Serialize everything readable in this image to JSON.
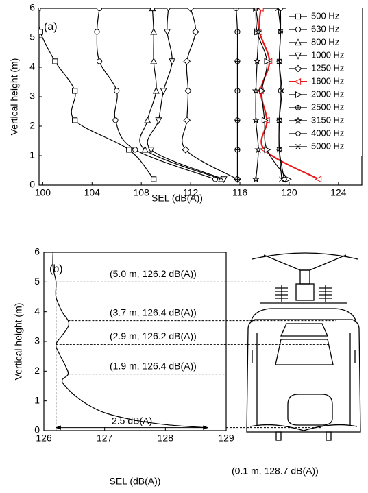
{
  "chart_data": [
    {
      "type": "line",
      "label": "(a)",
      "x_label": "SEL (dB(A))",
      "y_label": "Vertical height (m)",
      "xlim": [
        99.7,
        125.9
      ],
      "xticks": [
        100,
        104,
        108,
        112,
        116,
        120,
        124
      ],
      "ylim": [
        0,
        6
      ],
      "yticks": [
        0,
        1,
        2,
        3,
        4,
        5,
        6
      ],
      "legend": "upper right",
      "y": [
        0.2,
        1.2,
        2.2,
        3.2,
        4.2,
        5.2,
        6
      ],
      "series": [
        {
          "name": "500 Hz",
          "color": "#000000",
          "marker": "square",
          "values": [
            109.0,
            107.0,
            102.6,
            102.6,
            101.0,
            99.8,
            99.6
          ]
        },
        {
          "name": "630 Hz",
          "color": "#000000",
          "marker": "circle",
          "values": [
            114.0,
            107.5,
            105.9,
            106.0,
            104.6,
            104.4,
            104.6
          ]
        },
        {
          "name": "800 Hz",
          "color": "#000000",
          "marker": "triangle-up",
          "values": [
            114.5,
            108.3,
            108.5,
            109.2,
            109.0,
            109.0,
            108.9
          ]
        },
        {
          "name": "1000 Hz",
          "color": "#000000",
          "marker": "triangle-down",
          "values": [
            114.7,
            108.8,
            109.4,
            109.8,
            110.5,
            110.1,
            110.2
          ]
        },
        {
          "name": "1250 Hz",
          "color": "#000000",
          "marker": "diamond",
          "values": [
            115.8,
            111.6,
            111.7,
            111.8,
            111.7,
            112.4,
            112.0
          ]
        },
        {
          "name": "1600 Hz",
          "color": "#e8191b",
          "marker": "triangle-left",
          "values": [
            122.4,
            118.0,
            118.2,
            117.7,
            118.4,
            117.6,
            117.7
          ]
        },
        {
          "name": "2000 Hz",
          "color": "#000000",
          "marker": "triangle-right",
          "values": [
            119.9,
            118.2,
            118.0,
            117.8,
            118.2,
            117.4,
            117.3
          ]
        },
        {
          "name": "2500 Hz",
          "color": "#000000",
          "marker": "circle-plus",
          "values": [
            115.8,
            115.8,
            115.8,
            115.8,
            115.8,
            115.8,
            115.7
          ]
        },
        {
          "name": "3150 Hz",
          "color": "#000000",
          "marker": "star",
          "values": [
            117.3,
            117.5,
            117.3,
            117.3,
            117.4,
            117.5,
            117.3
          ]
        },
        {
          "name": "4000 Hz",
          "color": "#000000",
          "marker": "hexagon",
          "values": [
            119.6,
            119.2,
            119.2,
            119.3,
            119.2,
            119.3,
            119.3
          ]
        },
        {
          "name": "5000 Hz",
          "color": "#000000",
          "marker": "x",
          "values": [
            119.4,
            119.2,
            119.2,
            119.4,
            119.2,
            119.3,
            119.1
          ]
        }
      ]
    },
    {
      "type": "line",
      "label": "(b)",
      "x_label": "SEL (dB(A))",
      "y_label": "Vertical height (m)",
      "xlim": [
        126,
        129
      ],
      "xticks": [
        126,
        127,
        128,
        129
      ],
      "ylim": [
        0,
        6
      ],
      "yticks": [
        0,
        1,
        2,
        3,
        4,
        5,
        6
      ],
      "y": [
        0.1,
        0.2,
        0.35,
        0.6,
        0.9,
        1.2,
        1.5,
        1.7,
        1.9,
        2.2,
        2.6,
        2.9,
        3.2,
        3.5,
        3.7,
        4.0,
        4.5,
        5.0,
        5.5,
        6.0
      ],
      "series": [
        {
          "color": "#000000",
          "values": [
            128.65,
            128.0,
            127.5,
            127.0,
            126.7,
            126.5,
            126.35,
            126.3,
            126.4,
            126.35,
            126.25,
            126.2,
            126.3,
            126.4,
            126.4,
            126.3,
            126.2,
            126.2,
            126.15,
            126.15
          ]
        }
      ],
      "annotations": [
        {
          "text": "(5.0 m, 126.2 dB(A))",
          "x": 126.2,
          "y": 5.0
        },
        {
          "text": "(3.7 m, 126.4 dB(A))",
          "x": 126.4,
          "y": 3.7
        },
        {
          "text": "(2.9 m, 126.2 dB(A))",
          "x": 126.2,
          "y": 2.9
        },
        {
          "text": "(1.9 m, 126.4 dB(A))",
          "x": 126.4,
          "y": 1.9
        },
        {
          "text": "(0.1 m, 128.7 dB(A))",
          "x": 128.7,
          "y": 0.1
        }
      ],
      "arrow": {
        "text": "2.5 dB(A)",
        "x": [
          126.2,
          128.7
        ],
        "y": 0.1
      }
    }
  ]
}
